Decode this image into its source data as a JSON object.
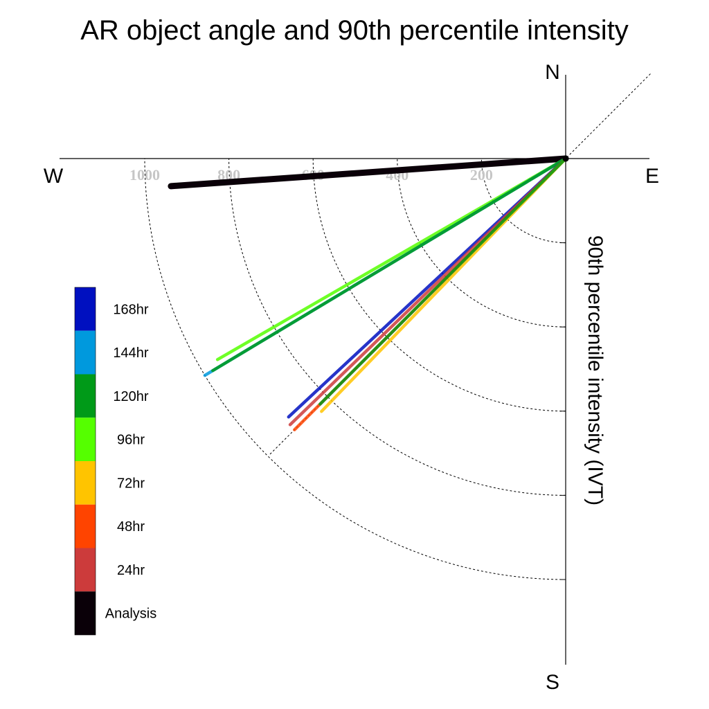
{
  "chart_data": {
    "type": "polar-vector",
    "title": "AR object angle and 90th percentile intensity",
    "radial_axis_label": "90th percentile intensity (IVT)",
    "compass": {
      "north": "N",
      "south": "S",
      "east": "E",
      "west": "W"
    },
    "radial_ticks": [
      200,
      400,
      600,
      800,
      1000
    ],
    "radial_tick_labels": [
      "200",
      "400",
      "600",
      "800",
      "1000"
    ],
    "radial_max": 1000,
    "grid": true,
    "legend_position": "left",
    "legend": [
      {
        "label": "168hr",
        "color": "#0010c0"
      },
      {
        "label": "144hr",
        "color": "#0099dd"
      },
      {
        "label": "120hr",
        "color": "#009a18"
      },
      {
        "label": "96hr",
        "color": "#55ff00"
      },
      {
        "label": "72hr",
        "color": "#ffc400"
      },
      {
        "label": "48hr",
        "color": "#ff4400"
      },
      {
        "label": "24hr",
        "color": "#cc3b3b"
      },
      {
        "label": "Analysis",
        "color": "#0a0008"
      }
    ],
    "series": [
      {
        "name": "Analysis",
        "color": "#0a0008",
        "angle_deg": 266,
        "intensity": 940
      },
      {
        "name": "96hr",
        "color": "#55ff00",
        "angle_deg": 240,
        "intensity": 955
      },
      {
        "name": "144hr",
        "color": "#0099dd",
        "angle_deg": 239,
        "intensity": 1000
      },
      {
        "name": "120hr",
        "color": "#009a18",
        "angle_deg": 239,
        "intensity": 978
      },
      {
        "name": "168hr",
        "color": "#0010c0",
        "angle_deg": 227,
        "intensity": 900
      },
      {
        "name": "24hr",
        "color": "#cc3b3b",
        "angle_deg": 226,
        "intensity": 910
      },
      {
        "name": "48hr",
        "color": "#ff4400",
        "angle_deg": 225,
        "intensity": 911
      },
      {
        "name": "72hr",
        "color": "#ffc400",
        "angle_deg": 224,
        "intensity": 835
      },
      {
        "name": "120hr",
        "color": "#009a18",
        "angle_deg": 225,
        "intensity": 825
      }
    ]
  }
}
